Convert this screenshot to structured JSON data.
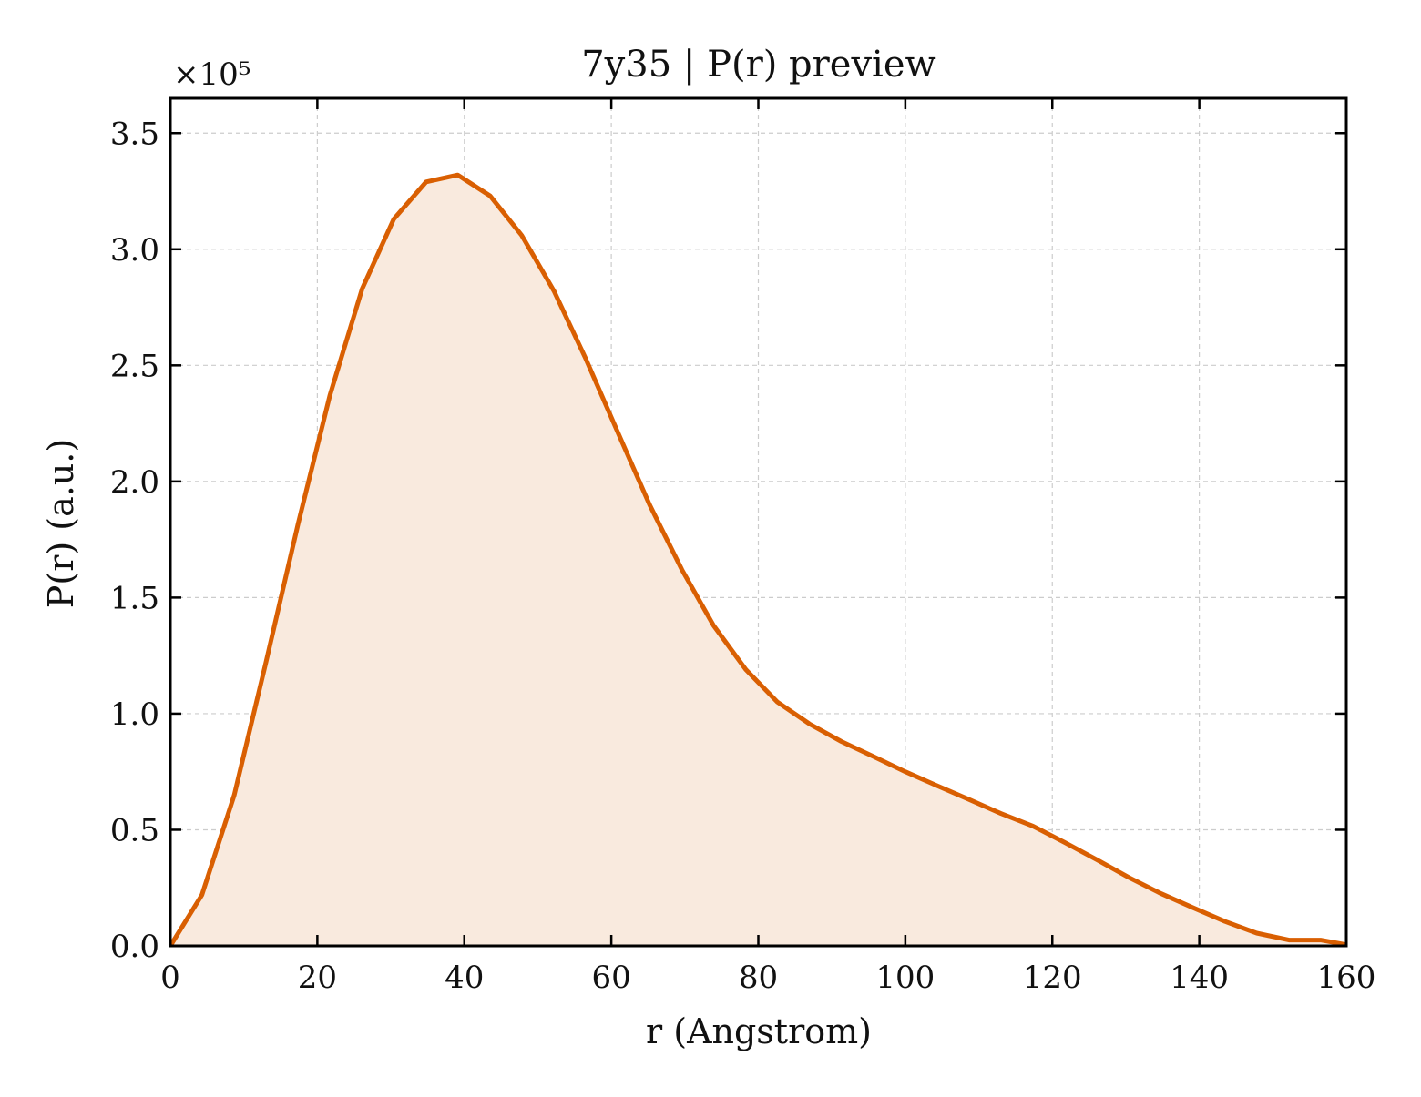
{
  "chart_data": {
    "type": "area",
    "title": "7y35 | P(r) preview",
    "xlabel": "r (Angstrom)",
    "ylabel": "P(r) (a.u.)",
    "offset_text": "×10⁵",
    "y_multiplier": 100000,
    "xlim": [
      0,
      160
    ],
    "ylim": [
      0,
      3.65
    ],
    "xticks": [
      0,
      20,
      40,
      60,
      80,
      100,
      120,
      140,
      160
    ],
    "xtick_labels": [
      "0",
      "20",
      "40",
      "60",
      "80",
      "100",
      "120",
      "140",
      "160"
    ],
    "yticks": [
      0,
      0.5,
      1.0,
      1.5,
      2.0,
      2.5,
      3.0,
      3.5
    ],
    "ytick_labels": [
      "0.0",
      "0.5",
      "1.0",
      "1.5",
      "2.0",
      "2.5",
      "3.0",
      "3.5"
    ],
    "grid": true,
    "series": [
      {
        "color": "#d95f02",
        "fill_color": "#f9eade",
        "x": [
          0,
          4.3,
          8.7,
          13.0,
          17.4,
          21.7,
          26.1,
          30.4,
          34.8,
          39.1,
          43.5,
          47.8,
          52.2,
          56.5,
          60.9,
          65.2,
          69.6,
          73.9,
          78.3,
          82.6,
          87.0,
          91.3,
          95.7,
          100.0,
          104.3,
          108.7,
          113.0,
          117.4,
          121.7,
          126.1,
          130.4,
          134.8,
          139.1,
          143.5,
          147.8,
          152.2,
          156.5,
          160.0
        ],
        "y": [
          0.0,
          0.22,
          0.65,
          1.22,
          1.82,
          2.37,
          2.83,
          3.13,
          3.29,
          3.32,
          3.23,
          3.06,
          2.82,
          2.53,
          2.21,
          1.9,
          1.62,
          1.38,
          1.19,
          1.05,
          0.955,
          0.88,
          0.815,
          0.75,
          0.69,
          0.63,
          0.57,
          0.515,
          0.445,
          0.37,
          0.295,
          0.225,
          0.165,
          0.105,
          0.055,
          0.025,
          0.025,
          0.005
        ]
      }
    ]
  }
}
